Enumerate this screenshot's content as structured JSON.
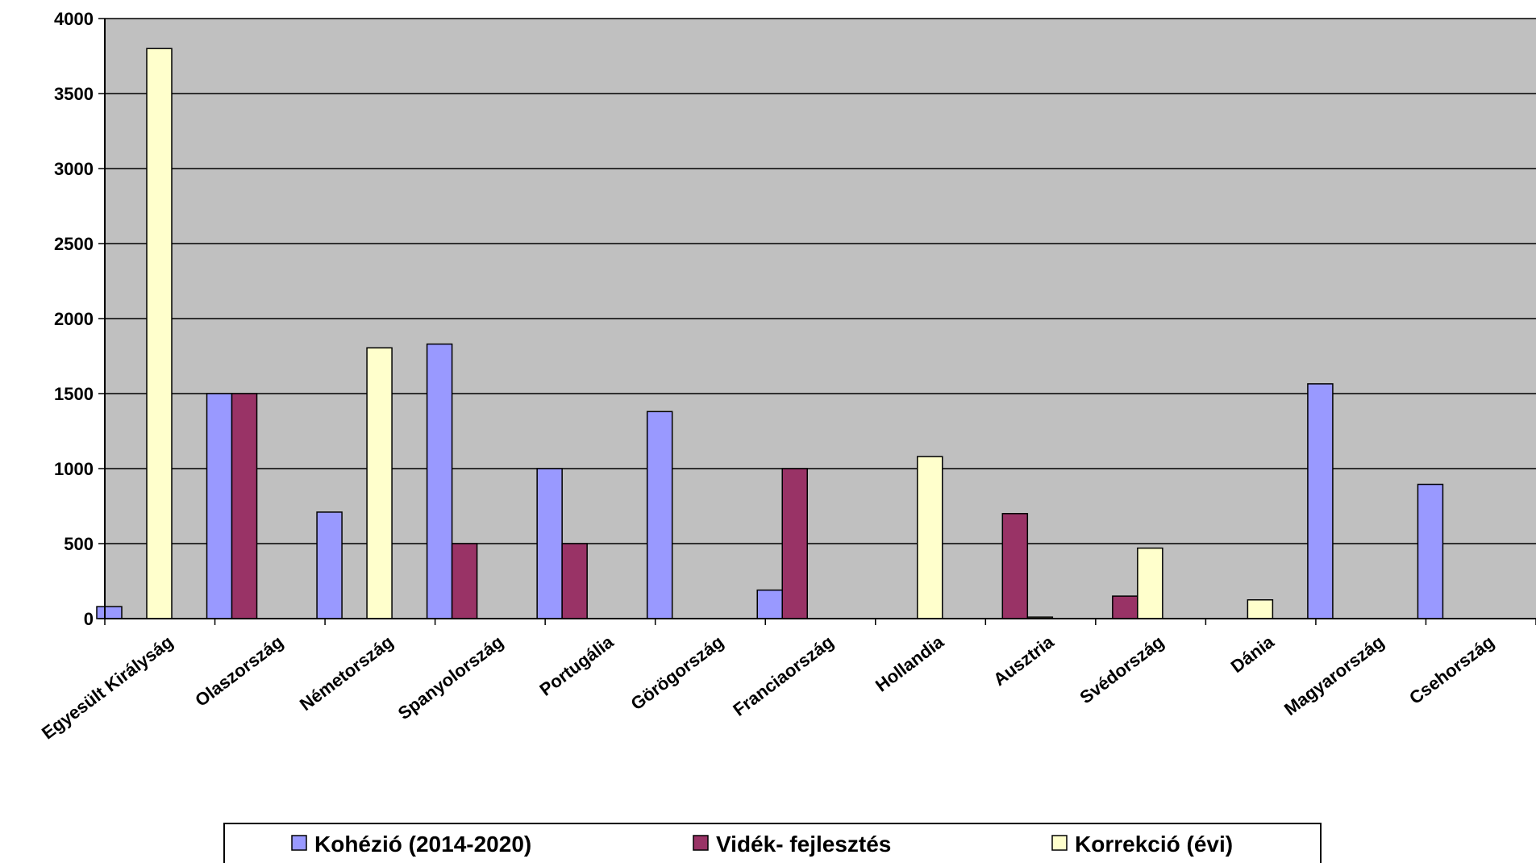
{
  "chart_data": {
    "type": "bar",
    "categories": [
      "Egyesült Királyság",
      "Olaszország",
      "Németország",
      "Spanyolország",
      "Portugália",
      "Görögország",
      "Franciaország",
      "Hollandia",
      "Ausztria",
      "Svédország",
      "Dánia",
      "Magyarország",
      "Csehország"
    ],
    "series": [
      {
        "name": "Kohézió (2014-2020)",
        "color": "#9999ff",
        "values": [
          80,
          1500,
          710,
          1830,
          1000,
          1380,
          190,
          0,
          0,
          0,
          0,
          1565,
          895
        ]
      },
      {
        "name": "Vidék- fejlesztés",
        "color": "#993366",
        "values": [
          0,
          1500,
          0,
          500,
          500,
          0,
          1000,
          0,
          700,
          150,
          0,
          0,
          0
        ]
      },
      {
        "name": "Korrekció (évi)",
        "color": "#ffffcc",
        "values": [
          3800,
          0,
          1805,
          0,
          0,
          0,
          0,
          1080,
          10,
          470,
          125,
          0,
          0
        ]
      }
    ],
    "ylim": [
      0,
      4000
    ],
    "yticks": [
      0,
      500,
      1000,
      1500,
      2000,
      2500,
      3000,
      3500,
      4000
    ],
    "title": "",
    "xlabel": "",
    "ylabel": "",
    "grid": true,
    "plot_background": "#c0c0c0",
    "legend_position": "bottom"
  }
}
